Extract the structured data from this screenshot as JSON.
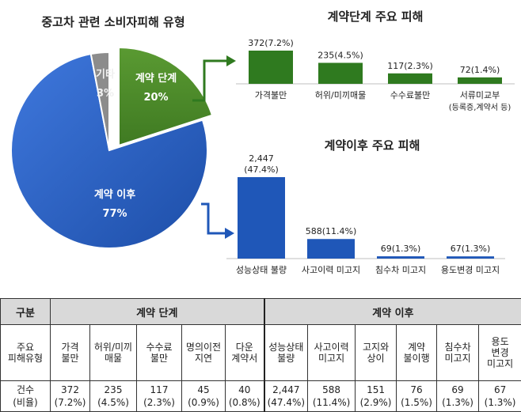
{
  "chart_data": [
    {
      "type": "pie",
      "title": "중고차 관련 소비자피해 유형",
      "slices": [
        {
          "label": "계약 단계",
          "value": 20,
          "value_label": "20%",
          "color": "#4f8a2b"
        },
        {
          "label": "계약 이후",
          "value": 77,
          "value_label": "77%",
          "color": "#2e62c4"
        },
        {
          "label": "기타",
          "value": 3,
          "value_label": "3%",
          "color": "#8c8c8c"
        }
      ]
    },
    {
      "type": "bar",
      "title": "계약단계 주요 피해",
      "categories": [
        "가격불만",
        "허위/미끼매물",
        "수수료불만",
        "서류미교부\n(등록증,계약서 등)"
      ],
      "values": [
        372,
        235,
        117,
        72
      ],
      "data_labels": [
        "372(7.2%)",
        "235(4.5%)",
        "117(2.3%)",
        "72(1.4%)"
      ],
      "color": "#2f7a1f"
    },
    {
      "type": "bar",
      "title": "계약이후 주요 피해",
      "categories": [
        "성능상태 불량",
        "사고이력 미고지",
        "침수차 미고지",
        "용도변경 미고지"
      ],
      "values": [
        2447,
        588,
        69,
        67
      ],
      "data_labels": [
        "2,447\n(47.4%)",
        "588(11.4%)",
        "69(1.3%)",
        "67(1.3%)"
      ],
      "color": "#1f57b8"
    }
  ],
  "table": {
    "col_header": "구분",
    "group1": "계약 단계",
    "group2": "계약 이후",
    "row_type_label": "주요\n피해유형",
    "categories": [
      "가격\n불만",
      "허위/미끼\n매물",
      "수수료\n불만",
      "명의이전\n지연",
      "다운\n계약서",
      "성능상태\n불량",
      "사고이력\n미고지",
      "고지와\n상이",
      "계약\n불이행",
      "침수차\n미고지",
      "용도\n변경\n미고지"
    ],
    "row_count_label": "건수\n(비율)",
    "counts": [
      "372\n(7.2%)",
      "235\n(4.5%)",
      "117\n(2.3%)",
      "45\n(0.9%)",
      "40\n(0.8%)",
      "2,447\n(47.4%)",
      "588\n(11.4%)",
      "151\n(2.9%)",
      "76\n(1.5%)",
      "69\n(1.3%)",
      "67\n(1.3%)"
    ]
  }
}
